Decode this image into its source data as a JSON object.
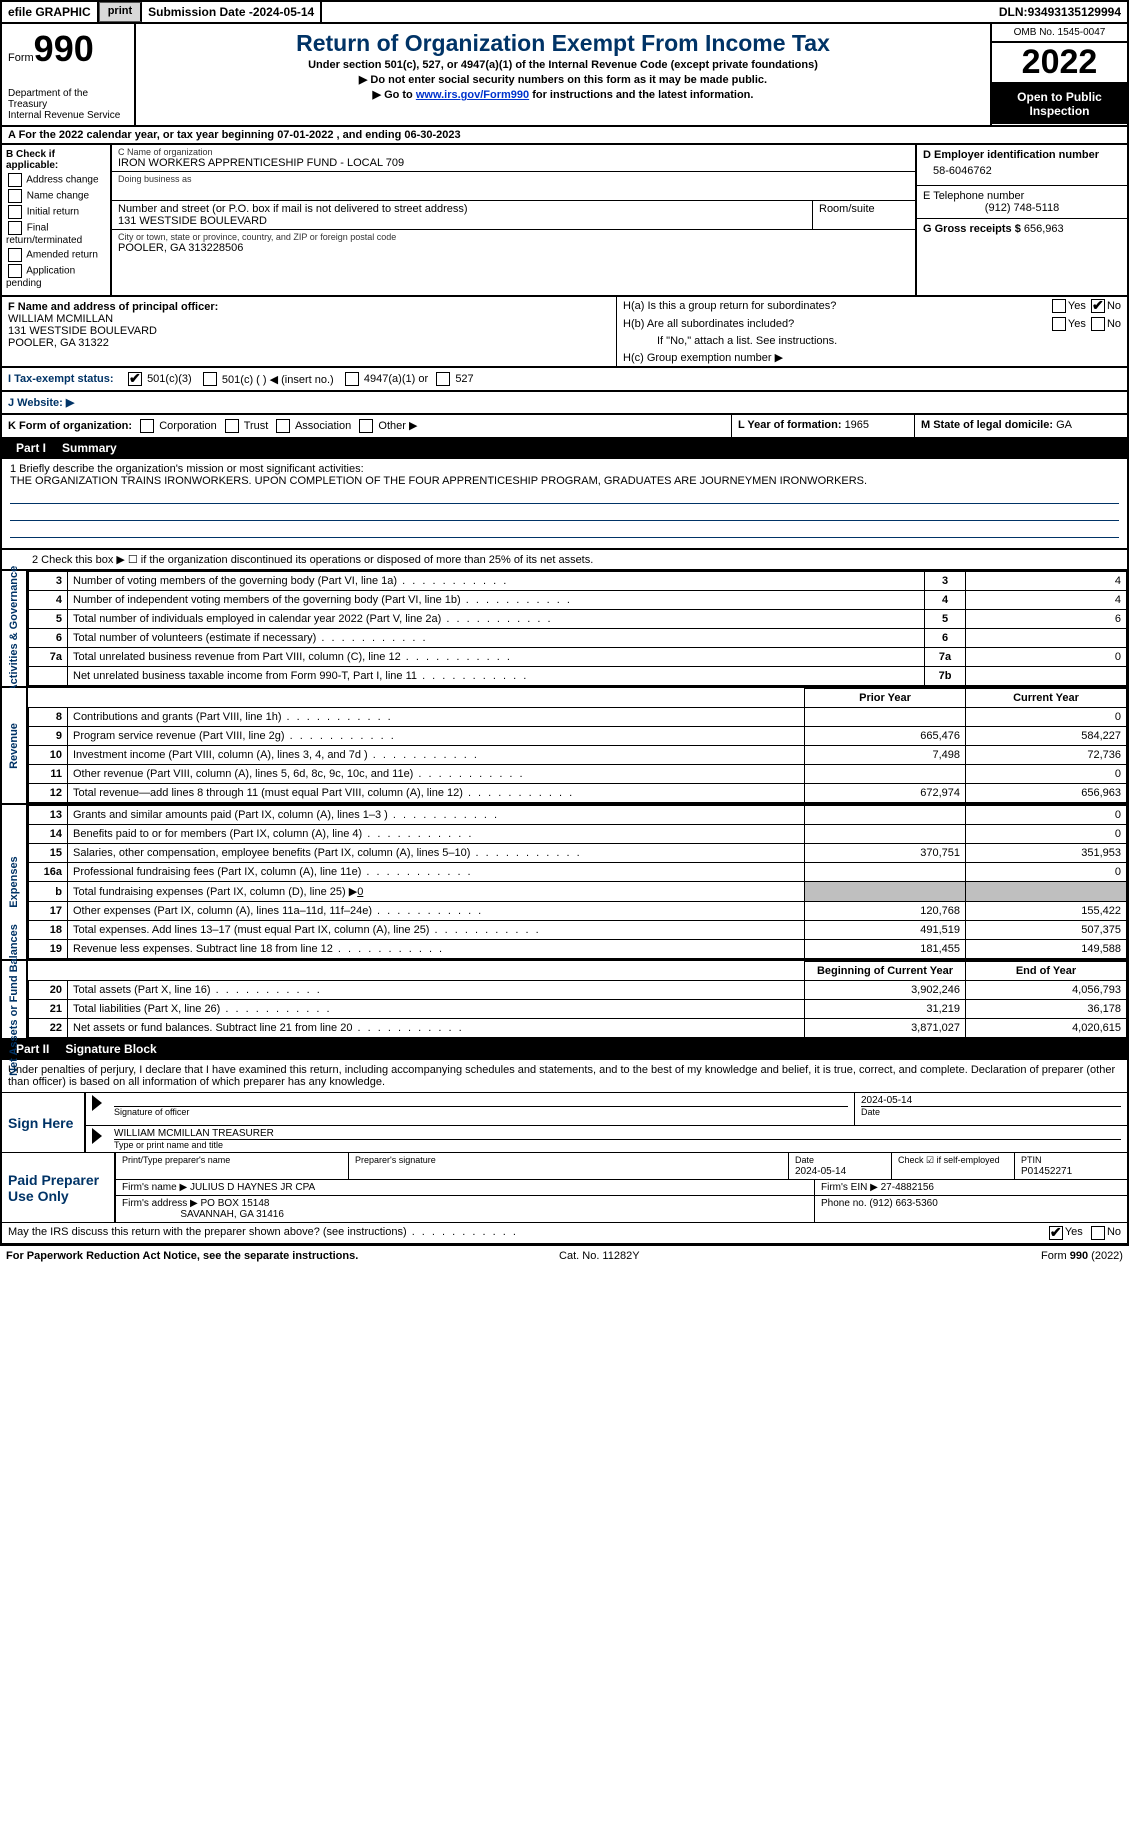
{
  "topbar": {
    "efile": "efile GRAPHIC",
    "print": "print",
    "sub_label": "Submission Date - ",
    "sub_date": "2024-05-14",
    "dln_label": "DLN: ",
    "dln": "93493135129994"
  },
  "header": {
    "form_label": "Form",
    "form_num": "990",
    "dept": "Department of the Treasury\nInternal Revenue Service",
    "title": "Return of Organization Exempt From Income Tax",
    "sub1": "Under section 501(c), 527, or 4947(a)(1) of the Internal Revenue Code (except private foundations)",
    "sub2": "▶ Do not enter social security numbers on this form as it may be made public.",
    "sub3_pre": "▶ Go to ",
    "sub3_link": "www.irs.gov/Form990",
    "sub3_post": " for instructions and the latest information.",
    "omb": "OMB No. 1545-0047",
    "year": "2022",
    "open": "Open to Public Inspection"
  },
  "cal": {
    "text": "A  For the 2022 calendar year, or tax year beginning 07-01-2022    , and ending 06-30-2023"
  },
  "section_b": {
    "label": "B Check if applicable:",
    "opts": [
      "Address change",
      "Name change",
      "Initial return",
      "Final return/terminated",
      "Amended return",
      "Application pending"
    ],
    "c_label": "C Name of organization",
    "c_name": "IRON WORKERS APPRENTICESHIP FUND - LOCAL 709",
    "dba_label": "Doing business as",
    "addr_label": "Number and street (or P.O. box if mail is not delivered to street address)",
    "addr": "131 WESTSIDE BOULEVARD",
    "room_label": "Room/suite",
    "city_label": "City or town, state or province, country, and ZIP or foreign postal code",
    "city": "POOLER, GA  313228506",
    "d_label": "D Employer identification number",
    "d_ein": "58-6046762",
    "e_label": "E Telephone number",
    "e_phone": "(912) 748-5118",
    "g_label": "G Gross receipts $ ",
    "g_amt": "656,963"
  },
  "section_f": {
    "f_label": "F Name and address of principal officer:",
    "name": "WILLIAM MCMILLAN",
    "addr1": "131 WESTSIDE BOULEVARD",
    "addr2": "POOLER, GA  31322",
    "ha_label": "H(a)  Is this a group return for subordinates?",
    "yes": "Yes",
    "no": "No",
    "hb_label": "H(b)  Are all subordinates included?",
    "hb_note": "If \"No,\" attach a list. See instructions.",
    "hc_label": "H(c)  Group exemption number ▶"
  },
  "section_i": {
    "label": "I  Tax-exempt status:",
    "o1": "501(c)(3)",
    "o2": "501(c) (   ) ◀ (insert no.)",
    "o3": "4947(a)(1) or",
    "o4": "527"
  },
  "section_j": {
    "label": "J  Website: ▶"
  },
  "section_k": {
    "label": "K Form of organization:",
    "o1": "Corporation",
    "o2": "Trust",
    "o3": "Association",
    "o4": "Other ▶",
    "l_label": "L Year of formation: ",
    "l_val": "1965",
    "m_label": "M State of legal domicile: ",
    "m_val": "GA"
  },
  "part1": {
    "label": "Part I",
    "title": "Summary"
  },
  "mission": {
    "q1": "1  Briefly describe the organization's mission or most significant activities:",
    "text": "THE ORGANIZATION TRAINS IRONWORKERS. UPON COMPLETION OF THE FOUR APPRENTICESHIP PROGRAM, GRADUATES ARE JOURNEYMEN IRONWORKERS.",
    "q2": "2   Check this box ▶ ☐  if the organization discontinued its operations or disposed of more than 25% of its net assets."
  },
  "sections": {
    "activities": {
      "label": "Activities & Governance",
      "rows": [
        {
          "n": "3",
          "desc": "Number of voting members of the governing body (Part VI, line 1a)",
          "ln": "3",
          "v": "4"
        },
        {
          "n": "4",
          "desc": "Number of independent voting members of the governing body (Part VI, line 1b)",
          "ln": "4",
          "v": "4"
        },
        {
          "n": "5",
          "desc": "Total number of individuals employed in calendar year 2022 (Part V, line 2a)",
          "ln": "5",
          "v": "6"
        },
        {
          "n": "6",
          "desc": "Total number of volunteers (estimate if necessary)",
          "ln": "6",
          "v": ""
        },
        {
          "n": "7a",
          "desc": "Total unrelated business revenue from Part VIII, column (C), line 12",
          "ln": "7a",
          "v": "0"
        },
        {
          "n": "",
          "desc": "Net unrelated business taxable income from Form 990-T, Part I, line 11",
          "ln": "7b",
          "v": ""
        }
      ]
    },
    "prior_hdr": "Prior Year",
    "curr_hdr": "Current Year",
    "revenue": {
      "label": "Revenue",
      "rows": [
        {
          "n": "8",
          "desc": "Contributions and grants (Part VIII, line 1h)",
          "py": "",
          "cy": "0"
        },
        {
          "n": "9",
          "desc": "Program service revenue (Part VIII, line 2g)",
          "py": "665,476",
          "cy": "584,227"
        },
        {
          "n": "10",
          "desc": "Investment income (Part VIII, column (A), lines 3, 4, and 7d )",
          "py": "7,498",
          "cy": "72,736"
        },
        {
          "n": "11",
          "desc": "Other revenue (Part VIII, column (A), lines 5, 6d, 8c, 9c, 10c, and 11e)",
          "py": "",
          "cy": "0"
        },
        {
          "n": "12",
          "desc": "Total revenue—add lines 8 through 11 (must equal Part VIII, column (A), line 12)",
          "py": "672,974",
          "cy": "656,963"
        }
      ]
    },
    "expenses": {
      "label": "Expenses",
      "rows": [
        {
          "n": "13",
          "desc": "Grants and similar amounts paid (Part IX, column (A), lines 1–3 )",
          "py": "",
          "cy": "0"
        },
        {
          "n": "14",
          "desc": "Benefits paid to or for members (Part IX, column (A), line 4)",
          "py": "",
          "cy": "0"
        },
        {
          "n": "15",
          "desc": "Salaries, other compensation, employee benefits (Part IX, column (A), lines 5–10)",
          "py": "370,751",
          "cy": "351,953"
        },
        {
          "n": "16a",
          "desc": "Professional fundraising fees (Part IX, column (A), line 11e)",
          "py": "",
          "cy": "0"
        }
      ],
      "b_row": {
        "n": "b",
        "desc": "Total fundraising expenses (Part IX, column (D), line 25) ▶",
        "v": "0"
      },
      "rows2": [
        {
          "n": "17",
          "desc": "Other expenses (Part IX, column (A), lines 11a–11d, 11f–24e)",
          "py": "120,768",
          "cy": "155,422"
        },
        {
          "n": "18",
          "desc": "Total expenses. Add lines 13–17 (must equal Part IX, column (A), line 25)",
          "py": "491,519",
          "cy": "507,375"
        },
        {
          "n": "19",
          "desc": "Revenue less expenses. Subtract line 18 from line 12",
          "py": "181,455",
          "cy": "149,588"
        }
      ]
    },
    "net": {
      "label": "Net Assets or Fund Balances",
      "hdr1": "Beginning of Current Year",
      "hdr2": "End of Year",
      "rows": [
        {
          "n": "20",
          "desc": "Total assets (Part X, line 16)",
          "py": "3,902,246",
          "cy": "4,056,793"
        },
        {
          "n": "21",
          "desc": "Total liabilities (Part X, line 26)",
          "py": "31,219",
          "cy": "36,178"
        },
        {
          "n": "22",
          "desc": "Net assets or fund balances. Subtract line 21 from line 20",
          "py": "3,871,027",
          "cy": "4,020,615"
        }
      ]
    }
  },
  "part2": {
    "label": "Part II",
    "title": "Signature Block"
  },
  "sig": {
    "declaration": "Under penalties of perjury, I declare that I have examined this return, including accompanying schedules and statements, and to the best of my knowledge and belief, it is true, correct, and complete. Declaration of preparer (other than officer) is based on all information of which preparer has any knowledge.",
    "sign_here": "Sign Here",
    "sig_officer": "Signature of officer",
    "sig_date": "2024-05-14",
    "date_lbl": "Date",
    "name_title": "WILLIAM MCMILLAN TREASURER",
    "name_lbl": "Type or print name and title",
    "paid": "Paid Preparer Use Only",
    "prep_name_lbl": "Print/Type preparer's name",
    "prep_sig_lbl": "Preparer's signature",
    "prep_date_lbl": "Date",
    "prep_date": "2024-05-14",
    "self_emp": "Check ☑ if self-employed",
    "ptin_lbl": "PTIN",
    "ptin": "P01452271",
    "firm_name_lbl": "Firm's name    ▶ ",
    "firm_name": "JULIUS D HAYNES JR CPA",
    "firm_ein_lbl": "Firm's EIN ▶ ",
    "firm_ein": "27-4882156",
    "firm_addr_lbl": "Firm's address ▶ ",
    "firm_addr1": "PO BOX 15148",
    "firm_addr2": "SAVANNAH, GA  31416",
    "firm_phone_lbl": "Phone no. ",
    "firm_phone": "(912) 663-5360",
    "discuss": "May the IRS discuss this return with the preparer shown above? (see instructions)",
    "yes": "Yes",
    "no": "No"
  },
  "footer": {
    "left": "For Paperwork Reduction Act Notice, see the separate instructions.",
    "cat": "Cat. No. 11282Y",
    "right": "Form 990 (2022)"
  }
}
